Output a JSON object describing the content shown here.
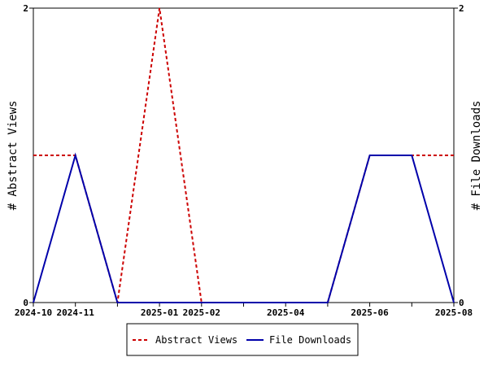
{
  "chart_data": {
    "type": "line",
    "title": "",
    "x_tick_labels": [
      "2024-10",
      "2024-11",
      "2025-01",
      "2025-02",
      "2025-04",
      "2025-06",
      "2025-08"
    ],
    "x": [
      "2024-10",
      "2024-11",
      "2024-12",
      "2025-01",
      "2025-02",
      "2025-03",
      "2025-04",
      "2025-05",
      "2025-06",
      "2025-07",
      "2025-08"
    ],
    "xlim": [
      "2024-10",
      "2025-08"
    ],
    "ylabel_left": "# Abstract Views",
    "ylabel_right": "# File Downloads",
    "ylim": [
      0,
      2
    ],
    "y_ticks": [
      0,
      2
    ],
    "grid": false,
    "legend_position": "bottom-center",
    "series": [
      {
        "name": "Abstract Views",
        "axis": "left",
        "color": "#cc0000",
        "style": "dashed",
        "values": [
          1,
          1,
          0,
          2,
          0,
          0,
          0,
          0,
          1,
          1,
          1
        ]
      },
      {
        "name": "File Downloads",
        "axis": "right",
        "color": "#0000aa",
        "style": "solid",
        "values": [
          0,
          1,
          0,
          0,
          0,
          0,
          0,
          0,
          1,
          1,
          0
        ]
      }
    ]
  }
}
